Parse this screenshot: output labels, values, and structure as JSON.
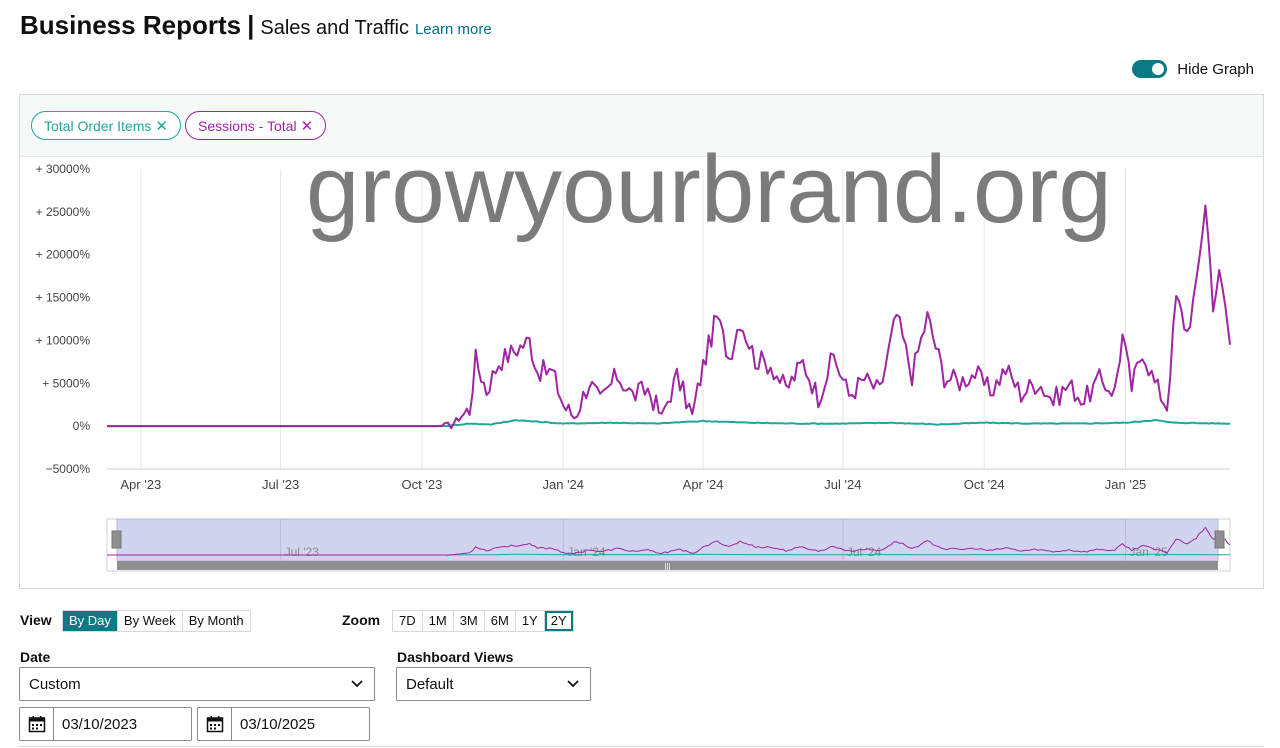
{
  "header": {
    "title": "Business Reports",
    "separator": "|",
    "subtitle": "Sales and Traffic",
    "learn_more": "Learn more"
  },
  "graph_toggle": {
    "label": "Hide Graph",
    "on": true
  },
  "chips": [
    {
      "label": "Total Order Items",
      "color": "#23a69a"
    },
    {
      "label": "Sessions - Total",
      "color": "#9f25a4"
    }
  ],
  "watermark": "growyourbrand.org",
  "chart_data": {
    "type": "line",
    "y_tick_labels": [
      "+ 30000%",
      "+ 25000%",
      "+ 20000%",
      "+ 15000%",
      "+ 10000%",
      "+ 5000%",
      "0%",
      "−5000%"
    ],
    "y_ticks": [
      30000,
      25000,
      20000,
      15000,
      10000,
      5000,
      0,
      -5000
    ],
    "ylim": [
      -5000,
      30000
    ],
    "x_tick_labels": [
      "Apr '23",
      "Jul '23",
      "Oct '23",
      "Jan '24",
      "Apr '24",
      "Jul '24",
      "Oct '24",
      "Jan '25"
    ],
    "x_ticks": [
      "2023-04-01",
      "2023-07-01",
      "2023-10-01",
      "2024-01-01",
      "2024-04-01",
      "2024-07-01",
      "2024-10-01",
      "2025-01-01"
    ],
    "xlim": [
      "2023-03-10",
      "2025-03-10"
    ],
    "grid": "vertical",
    "navigator_tick_labels": [
      "Jul '23",
      "Jan '24",
      "Jul '24",
      "Jan '25"
    ],
    "navigator_ticks": [
      "2023-07-01",
      "2024-01-01",
      "2024-07-01",
      "2025-01-01"
    ],
    "series": [
      {
        "color": "#9f25a4",
        "points": [
          [
            "2023-03-10",
            0
          ],
          [
            "2023-10-10",
            0
          ],
          [
            "2023-10-20",
            100
          ],
          [
            "2023-10-25",
            900
          ],
          [
            "2023-11-01",
            2000
          ],
          [
            "2023-11-05",
            7800
          ],
          [
            "2023-11-12",
            4200
          ],
          [
            "2023-11-20",
            7500
          ],
          [
            "2023-11-30",
            8800
          ],
          [
            "2023-12-10",
            10000
          ],
          [
            "2023-12-15",
            6500
          ],
          [
            "2023-12-25",
            6300
          ],
          [
            "2024-01-01",
            2500
          ],
          [
            "2024-01-08",
            1000
          ],
          [
            "2024-01-18",
            5200
          ],
          [
            "2024-01-25",
            2800
          ],
          [
            "2024-02-05",
            6000
          ],
          [
            "2024-02-15",
            3600
          ],
          [
            "2024-02-25",
            4300
          ],
          [
            "2024-03-05",
            1200
          ],
          [
            "2024-03-15",
            5800
          ],
          [
            "2024-03-25",
            1300
          ],
          [
            "2024-04-01",
            7000
          ],
          [
            "2024-04-10",
            12800
          ],
          [
            "2024-04-18",
            8000
          ],
          [
            "2024-04-25",
            12500
          ],
          [
            "2024-05-05",
            7800
          ],
          [
            "2024-05-15",
            7200
          ],
          [
            "2024-05-25",
            4200
          ],
          [
            "2024-06-05",
            7500
          ],
          [
            "2024-06-15",
            3400
          ],
          [
            "2024-06-25",
            8200
          ],
          [
            "2024-07-05",
            3600
          ],
          [
            "2024-07-15",
            5500
          ],
          [
            "2024-07-25",
            4000
          ],
          [
            "2024-08-05",
            13000
          ],
          [
            "2024-08-15",
            6000
          ],
          [
            "2024-08-25",
            12800
          ],
          [
            "2024-09-05",
            5800
          ],
          [
            "2024-09-15",
            5200
          ],
          [
            "2024-09-25",
            6200
          ],
          [
            "2024-10-05",
            4000
          ],
          [
            "2024-10-15",
            6700
          ],
          [
            "2024-10-25",
            3800
          ],
          [
            "2024-11-05",
            5200
          ],
          [
            "2024-11-15",
            3000
          ],
          [
            "2024-11-25",
            4800
          ],
          [
            "2024-12-05",
            3000
          ],
          [
            "2024-12-15",
            5400
          ],
          [
            "2024-12-25",
            4100
          ],
          [
            "2024-12-30",
            10500
          ],
          [
            "2025-01-05",
            4500
          ],
          [
            "2025-01-12",
            9000
          ],
          [
            "2025-01-20",
            5000
          ],
          [
            "2025-01-28",
            2400
          ],
          [
            "2025-02-03",
            15000
          ],
          [
            "2025-02-10",
            11000
          ],
          [
            "2025-02-16",
            16000
          ],
          [
            "2025-02-22",
            26300
          ],
          [
            "2025-02-27",
            14500
          ],
          [
            "2025-03-03",
            17500
          ],
          [
            "2025-03-07",
            14000
          ],
          [
            "2025-03-10",
            9500
          ]
        ]
      },
      {
        "color": "#23a69a",
        "points": [
          [
            "2023-03-10",
            0
          ],
          [
            "2023-10-15",
            0
          ],
          [
            "2023-11-01",
            300
          ],
          [
            "2023-11-15",
            200
          ],
          [
            "2023-12-01",
            700
          ],
          [
            "2024-01-01",
            300
          ],
          [
            "2024-02-01",
            400
          ],
          [
            "2024-03-01",
            300
          ],
          [
            "2024-04-01",
            600
          ],
          [
            "2024-05-01",
            400
          ],
          [
            "2024-06-01",
            300
          ],
          [
            "2024-07-01",
            300
          ],
          [
            "2024-08-01",
            400
          ],
          [
            "2024-09-01",
            200
          ],
          [
            "2024-10-01",
            400
          ],
          [
            "2024-11-01",
            300
          ],
          [
            "2024-12-01",
            300
          ],
          [
            "2025-01-01",
            400
          ],
          [
            "2025-01-20",
            700
          ],
          [
            "2025-02-01",
            400
          ],
          [
            "2025-03-10",
            300
          ]
        ]
      }
    ]
  },
  "view": {
    "label": "View",
    "options": [
      {
        "label": "By Day",
        "active": true
      },
      {
        "label": "By Week",
        "active": false
      },
      {
        "label": "By Month",
        "active": false
      }
    ]
  },
  "zoom": {
    "label": "Zoom",
    "options": [
      {
        "label": "7D",
        "active": false
      },
      {
        "label": "1M",
        "active": false
      },
      {
        "label": "3M",
        "active": false
      },
      {
        "label": "6M",
        "active": false
      },
      {
        "label": "1Y",
        "active": false
      },
      {
        "label": "2Y",
        "active": true
      }
    ]
  },
  "date": {
    "label": "Date",
    "selected": "Custom",
    "start": "03/10/2023",
    "end": "03/10/2025"
  },
  "dashboard": {
    "label": "Dashboard Views",
    "selected": "Default"
  }
}
